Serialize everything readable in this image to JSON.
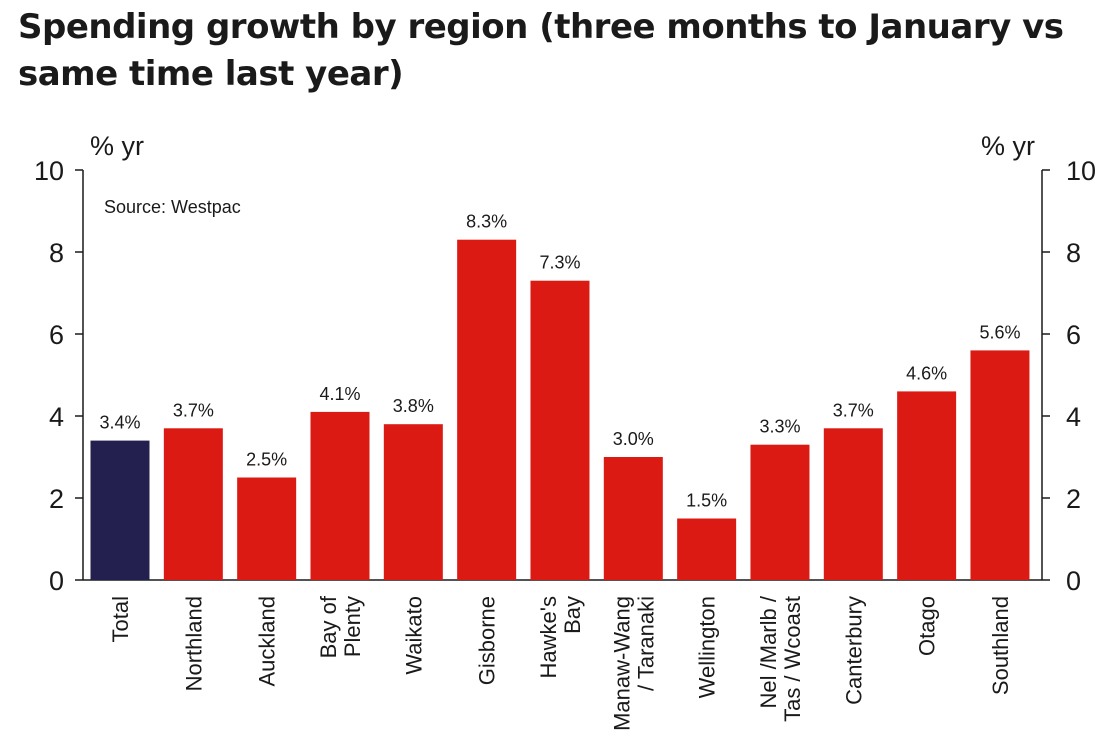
{
  "title": "Spending growth by region (three months to January vs same time last year)",
  "chart_data": {
    "type": "bar",
    "title": "Spending growth by region (three months to January vs same time last year)",
    "unit_left": "% yr",
    "unit_right": "% yr",
    "source": "Source: Westpac",
    "ylim": [
      0,
      10
    ],
    "yticks": [
      0,
      2,
      4,
      6,
      8,
      10
    ],
    "grid": false,
    "categories": [
      [
        "Total"
      ],
      [
        "Northland"
      ],
      [
        "Auckland"
      ],
      [
        "Bay of",
        "Plenty"
      ],
      [
        "Waikato"
      ],
      [
        "Gisborne"
      ],
      [
        "Hawke's",
        "Bay"
      ],
      [
        "Manaw-Wang",
        "/ Taranaki"
      ],
      [
        "Wellington"
      ],
      [
        "Nel /Marlb /",
        "Tas / Wcoast"
      ],
      [
        "Canterbury"
      ],
      [
        "Otago"
      ],
      [
        "Southland"
      ]
    ],
    "values": [
      3.4,
      3.7,
      2.5,
      4.1,
      3.8,
      8.3,
      7.3,
      3.0,
      1.5,
      3.3,
      3.7,
      4.6,
      5.6
    ],
    "data_labels": [
      "3.4%",
      "3.7%",
      "2.5%",
      "4.1%",
      "3.8%",
      "8.3%",
      "7.3%",
      "3.0%",
      "1.5%",
      "3.3%",
      "3.7%",
      "4.6%",
      "5.6%"
    ],
    "colors": {
      "highlight": "#231f4e",
      "bar": "#dc1a14",
      "axis": "#1a1a1a"
    },
    "highlight_index": 0
  }
}
